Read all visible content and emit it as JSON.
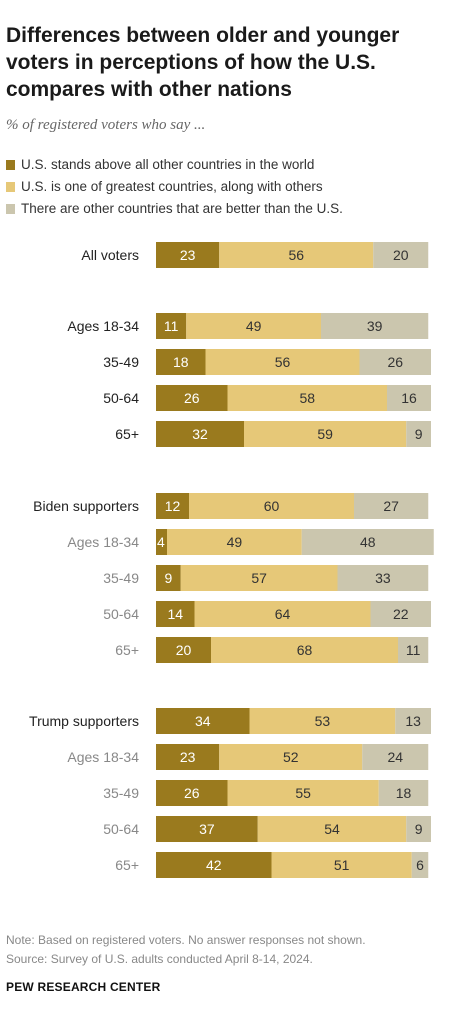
{
  "title": "Differences between older and younger voters in perceptions of how the U.S. compares with other nations",
  "subtitle": "% of registered voters who say ...",
  "note": "Note: Based on registered voters. No answer responses not shown.",
  "source": "Source: Survey of U.S. adults conducted April 8-14, 2024.",
  "organization": "PEW RESEARCH CENTER",
  "colors": {
    "above": "#9a7a1e",
    "one_of_greatest": "#e6c878",
    "others_better": "#cbc6ae",
    "label_dark": "#222222",
    "label_muted": "#888888"
  },
  "chart_data": {
    "type": "bar",
    "orientation": "horizontal",
    "stacked": true,
    "series": [
      {
        "name": "U.S. stands above all other countries in the world",
        "color": "#9a7a1e"
      },
      {
        "name": "U.S. is one of greatest countries, along with others",
        "color": "#e6c878"
      },
      {
        "name": "There are other countries that are better than the U.S.",
        "color": "#cbc6ae"
      }
    ],
    "rows": [
      {
        "label": "All voters",
        "values": [
          23,
          56,
          20
        ],
        "style": "group"
      },
      {
        "label": "Ages 18-34",
        "values": [
          11,
          49,
          39
        ],
        "style": "group"
      },
      {
        "label": "35-49",
        "values": [
          18,
          56,
          26
        ],
        "style": "group"
      },
      {
        "label": "50-64",
        "values": [
          26,
          58,
          16
        ],
        "style": "group"
      },
      {
        "label": "65+",
        "values": [
          32,
          59,
          9
        ],
        "style": "group"
      },
      {
        "label": "Biden supporters",
        "values": [
          12,
          60,
          27
        ],
        "style": "group"
      },
      {
        "label": "Ages 18-34",
        "values": [
          4,
          49,
          48
        ],
        "style": "sub"
      },
      {
        "label": "35-49",
        "values": [
          9,
          57,
          33
        ],
        "style": "sub"
      },
      {
        "label": "50-64",
        "values": [
          14,
          64,
          22
        ],
        "style": "sub"
      },
      {
        "label": "65+",
        "values": [
          20,
          68,
          11
        ],
        "style": "sub"
      },
      {
        "label": "Trump supporters",
        "values": [
          34,
          53,
          13
        ],
        "style": "group"
      },
      {
        "label": "Ages 18-34",
        "values": [
          23,
          52,
          24
        ],
        "style": "sub"
      },
      {
        "label": "35-49",
        "values": [
          26,
          55,
          18
        ],
        "style": "sub"
      },
      {
        "label": "50-64",
        "values": [
          37,
          54,
          9
        ],
        "style": "sub"
      },
      {
        "label": "65+",
        "values": [
          42,
          51,
          6
        ],
        "style": "sub"
      }
    ]
  }
}
